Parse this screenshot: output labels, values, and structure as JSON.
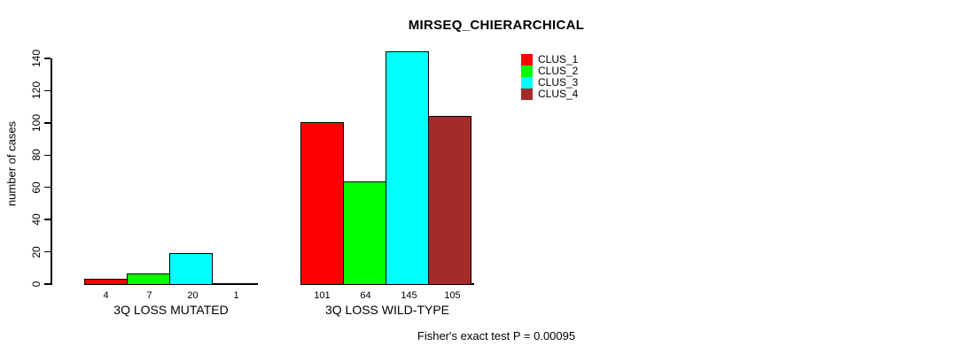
{
  "chart_data": {
    "type": "bar",
    "title": "MIRSEQ_CHIERARCHICAL",
    "ylabel": "number of cases",
    "xlabel": "",
    "ylim": [
      0,
      145
    ],
    "yticks": [
      0,
      20,
      40,
      60,
      80,
      100,
      120,
      140
    ],
    "categories": [
      "3Q LOSS MUTATED",
      "3Q LOSS WILD-TYPE"
    ],
    "series": [
      {
        "name": "CLUS_1",
        "color": "#ff0000",
        "values": [
          4,
          101
        ]
      },
      {
        "name": "CLUS_2",
        "color": "#00ff00",
        "values": [
          7,
          64
        ]
      },
      {
        "name": "CLUS_3",
        "color": "#00ffff",
        "values": [
          20,
          145
        ]
      },
      {
        "name": "CLUS_4",
        "color": "#a52a2a",
        "values": [
          1,
          105
        ]
      }
    ],
    "bar_value_labels_shown": true,
    "grid": false,
    "legend_position": "top-right",
    "annotation": "Fisher's exact test P = 0.00095",
    "background_color": "#ffffff",
    "axis_color": "#000000"
  }
}
